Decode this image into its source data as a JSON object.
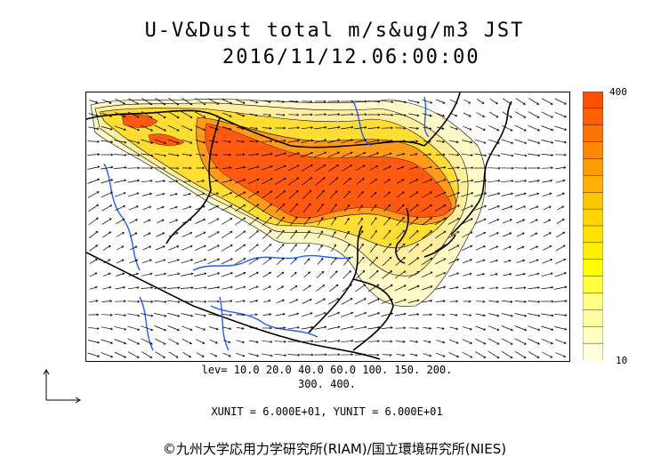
{
  "header": {
    "title": "U-V&Dust total m/s&ug/m3 JST",
    "datetime": "2016/11/12.06:00:00"
  },
  "colorbar": {
    "max_label": "400",
    "min_label": "10",
    "colors": [
      "#ffffd9",
      "#ffffc0",
      "#ffffa0",
      "#ffff80",
      "#ffff40",
      "#ffff00",
      "#ffef00",
      "#ffe000",
      "#ffd400",
      "#ffc400",
      "#ffb000",
      "#ff9c00",
      "#ff8800",
      "#ff7400",
      "#ff6000",
      "#ff5000"
    ]
  },
  "levels": {
    "line1": "lev= 10.0 20.0 40.0 60.0 100. 150. 200.",
    "line2": "300. 400."
  },
  "units": {
    "text": "XUNIT = 6.000E+01, YUNIT = 6.000E+01"
  },
  "credit": {
    "text": "©九州大学応用力学研究所(RIAM)/国立環境研究所(NIES)"
  },
  "map": {
    "dust_colors": {
      "light": "#fffac8",
      "pale": "#ffef9e",
      "yellow": "#ffdd33",
      "orange": "#ff9a1a",
      "red": "#ff5a10"
    },
    "land_border_color": "#000000",
    "river_color": "#1f5fff"
  }
}
